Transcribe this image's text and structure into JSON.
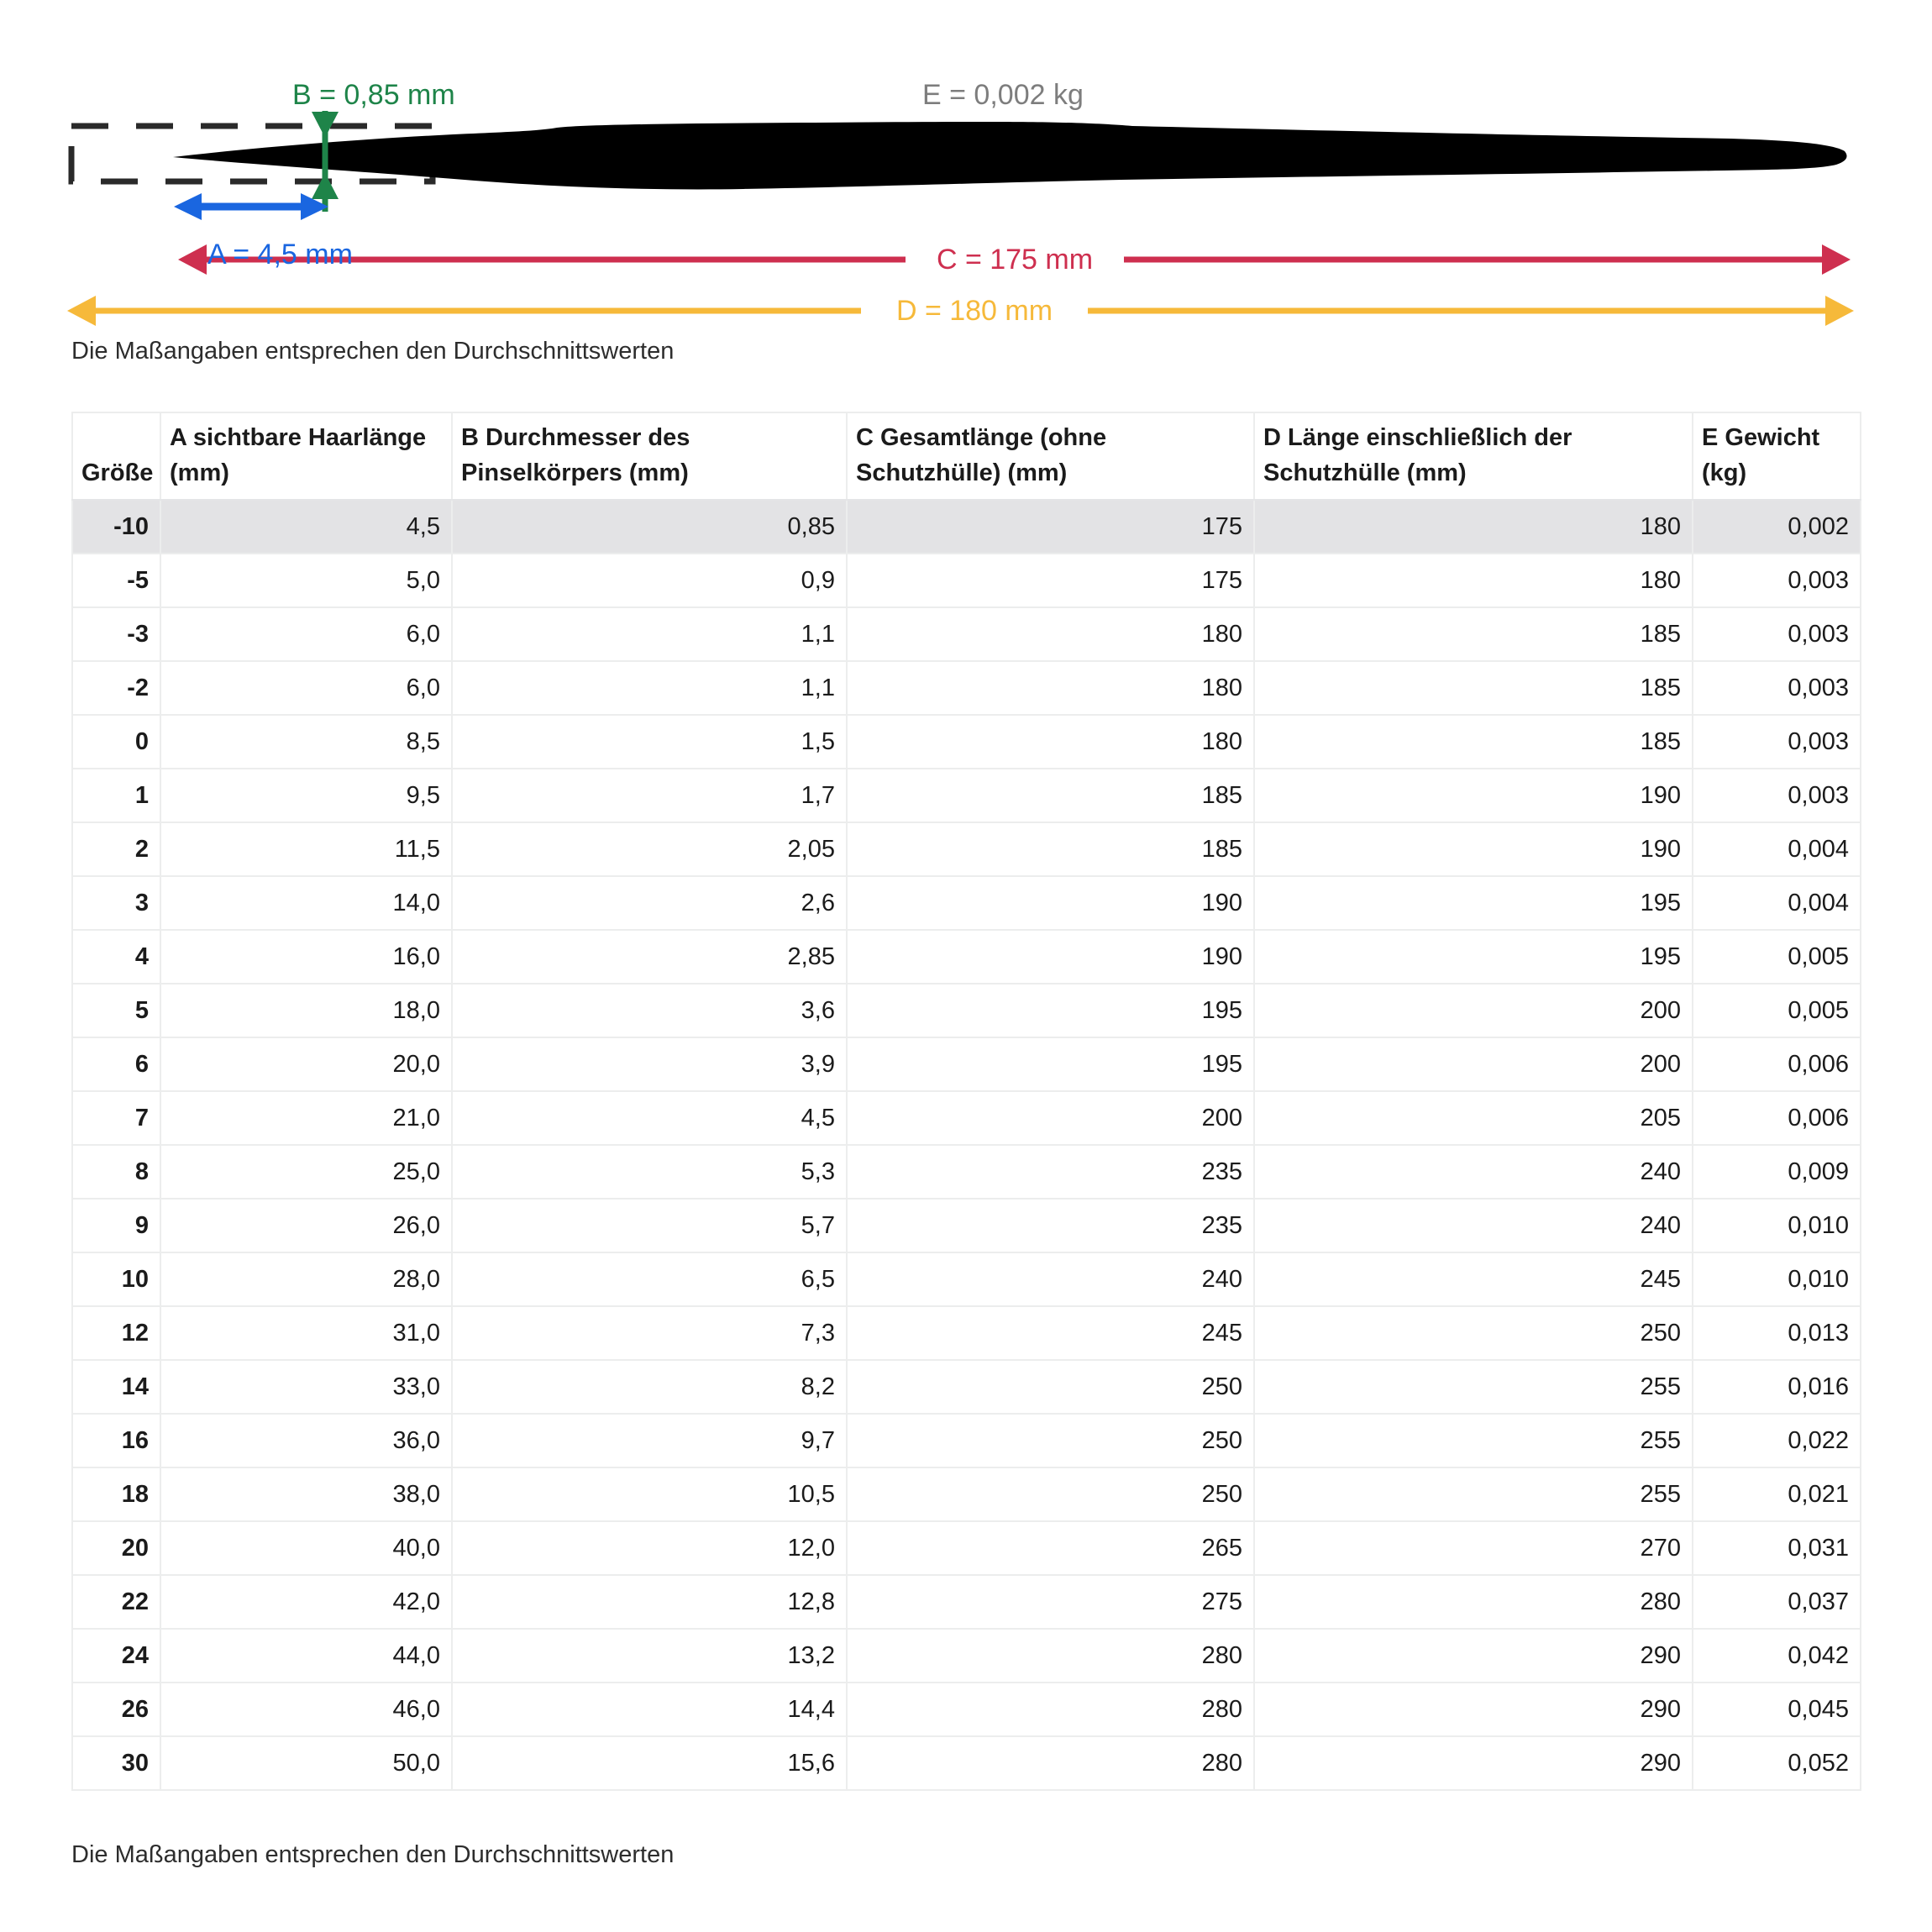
{
  "diagram": {
    "labels": {
      "a": "A = 4,5 mm",
      "b": "B = 0,85 mm",
      "c": "C = 175 mm",
      "d": "D = 180 mm",
      "e": "E = 0,002 kg"
    },
    "colors": {
      "a_blue": "#1a66e0",
      "b_green": "#1e8449",
      "c_red": "#ce2f4f",
      "d_yellow": "#f6b93a",
      "e_gray": "#7d7d7d",
      "brush_black": "#000000",
      "highlight_row_bg": "#e3e3e5"
    },
    "note": "Die Maßangaben entsprechen den Durchschnittswerten"
  },
  "table": {
    "headers": [
      "Größe",
      "A sichtbare Haarlänge (mm)",
      "B Durchmesser des Pinselkörpers (mm)",
      "C Gesamtlänge (ohne Schutzhülle) (mm)",
      "D Länge einschließlich der Schutzhülle (mm)",
      "E Gewicht (kg)"
    ],
    "highlighted_row": 0,
    "rows": [
      [
        "-10",
        "4,5",
        "0,85",
        "175",
        "180",
        "0,002"
      ],
      [
        "-5",
        "5,0",
        "0,9",
        "175",
        "180",
        "0,003"
      ],
      [
        "-3",
        "6,0",
        "1,1",
        "180",
        "185",
        "0,003"
      ],
      [
        "-2",
        "6,0",
        "1,1",
        "180",
        "185",
        "0,003"
      ],
      [
        "0",
        "8,5",
        "1,5",
        "180",
        "185",
        "0,003"
      ],
      [
        "1",
        "9,5",
        "1,7",
        "185",
        "190",
        "0,003"
      ],
      [
        "2",
        "11,5",
        "2,05",
        "185",
        "190",
        "0,004"
      ],
      [
        "3",
        "14,0",
        "2,6",
        "190",
        "195",
        "0,004"
      ],
      [
        "4",
        "16,0",
        "2,85",
        "190",
        "195",
        "0,005"
      ],
      [
        "5",
        "18,0",
        "3,6",
        "195",
        "200",
        "0,005"
      ],
      [
        "6",
        "20,0",
        "3,9",
        "195",
        "200",
        "0,006"
      ],
      [
        "7",
        "21,0",
        "4,5",
        "200",
        "205",
        "0,006"
      ],
      [
        "8",
        "25,0",
        "5,3",
        "235",
        "240",
        "0,009"
      ],
      [
        "9",
        "26,0",
        "5,7",
        "235",
        "240",
        "0,010"
      ],
      [
        "10",
        "28,0",
        "6,5",
        "240",
        "245",
        "0,010"
      ],
      [
        "12",
        "31,0",
        "7,3",
        "245",
        "250",
        "0,013"
      ],
      [
        "14",
        "33,0",
        "8,2",
        "250",
        "255",
        "0,016"
      ],
      [
        "16",
        "36,0",
        "9,7",
        "250",
        "255",
        "0,022"
      ],
      [
        "18",
        "38,0",
        "10,5",
        "250",
        "255",
        "0,021"
      ],
      [
        "20",
        "40,0",
        "12,0",
        "265",
        "270",
        "0,031"
      ],
      [
        "22",
        "42,0",
        "12,8",
        "275",
        "280",
        "0,037"
      ],
      [
        "24",
        "44,0",
        "13,2",
        "280",
        "290",
        "0,042"
      ],
      [
        "26",
        "46,0",
        "14,4",
        "280",
        "290",
        "0,045"
      ],
      [
        "30",
        "50,0",
        "15,6",
        "280",
        "290",
        "0,052"
      ]
    ]
  },
  "footer_note": "Die Maßangaben entsprechen den Durchschnittswerten"
}
